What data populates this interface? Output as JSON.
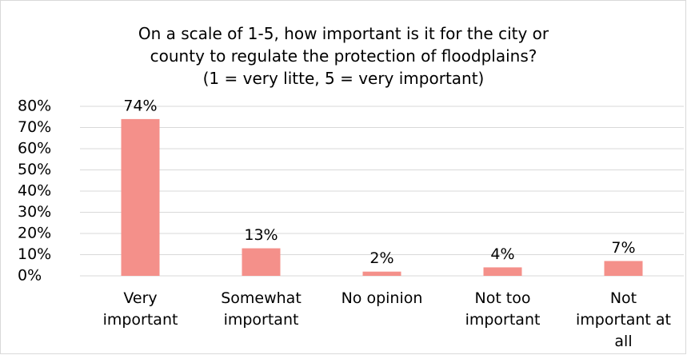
{
  "chart_data": {
    "type": "bar",
    "title": "On a scale of 1-5, how important is it for the city or\ncounty to regulate the protection of floodplains?\n(1 = very litte, 5 = very important)",
    "categories": [
      "Very important",
      "Somewhat important",
      "No opinion",
      "Not too important",
      "Not important at all"
    ],
    "values": [
      74,
      13,
      2,
      4,
      7
    ],
    "value_labels": [
      "74%",
      "13%",
      "2%",
      "4%",
      "7%"
    ],
    "color": "#f4908a",
    "ylim": [
      0,
      80
    ],
    "yticks": [
      {
        "value": 0,
        "label": "0%"
      },
      {
        "value": 10,
        "label": "10%"
      },
      {
        "value": 20,
        "label": "20%"
      },
      {
        "value": 30,
        "label": "30%"
      },
      {
        "value": 40,
        "label": "40%"
      },
      {
        "value": 50,
        "label": "50%"
      },
      {
        "value": 60,
        "label": "60%"
      },
      {
        "value": 70,
        "label": "70%"
      },
      {
        "value": 80,
        "label": "80%"
      }
    ],
    "grid": true
  }
}
